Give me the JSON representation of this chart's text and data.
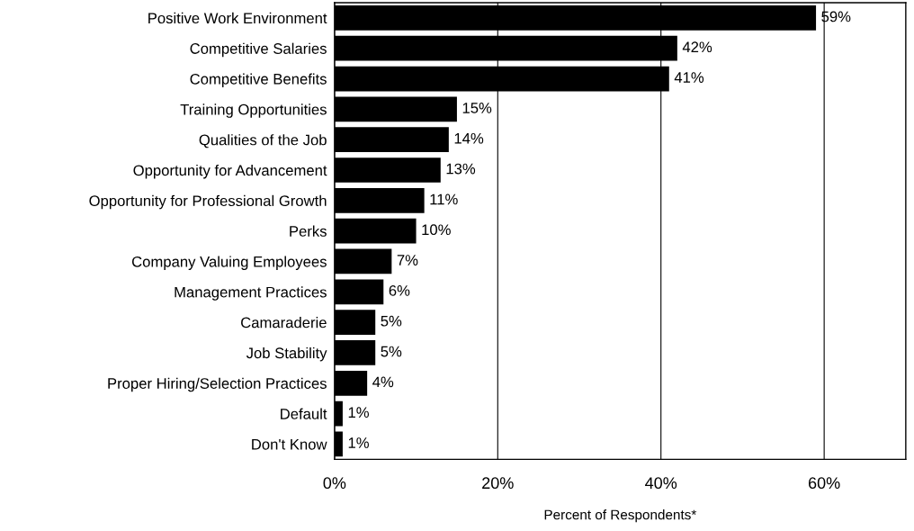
{
  "chart_data": {
    "type": "bar",
    "orientation": "horizontal",
    "xlabel": "Percent of Respondents*",
    "categories": [
      "Positive Work Environment",
      "Competitive Salaries",
      "Competitive Benefits",
      "Training Opportunities",
      "Qualities of the Job",
      "Opportunity for Advancement",
      "Opportunity for Professional Growth",
      "Perks",
      "Company Valuing Employees",
      "Management Practices",
      "Camaraderie",
      "Job Stability",
      "Proper Hiring/Selection Practices",
      "Default",
      "Don't Know"
    ],
    "values": [
      59,
      42,
      41,
      15,
      14,
      13,
      11,
      10,
      7,
      6,
      5,
      5,
      4,
      1,
      1
    ],
    "value_labels": [
      "59%",
      "42%",
      "41%",
      "15%",
      "14%",
      "13%",
      "11%",
      "10%",
      "7%",
      "6%",
      "5%",
      "5%",
      "4%",
      "1%",
      "1%"
    ],
    "color": "#000000",
    "xlim": [
      0,
      70
    ],
    "xticks": [
      {
        "value": 0,
        "label": "0%"
      },
      {
        "value": 20,
        "label": "20%"
      },
      {
        "value": 40,
        "label": "40%"
      },
      {
        "value": 60,
        "label": "60%"
      }
    ],
    "grid": "x"
  }
}
